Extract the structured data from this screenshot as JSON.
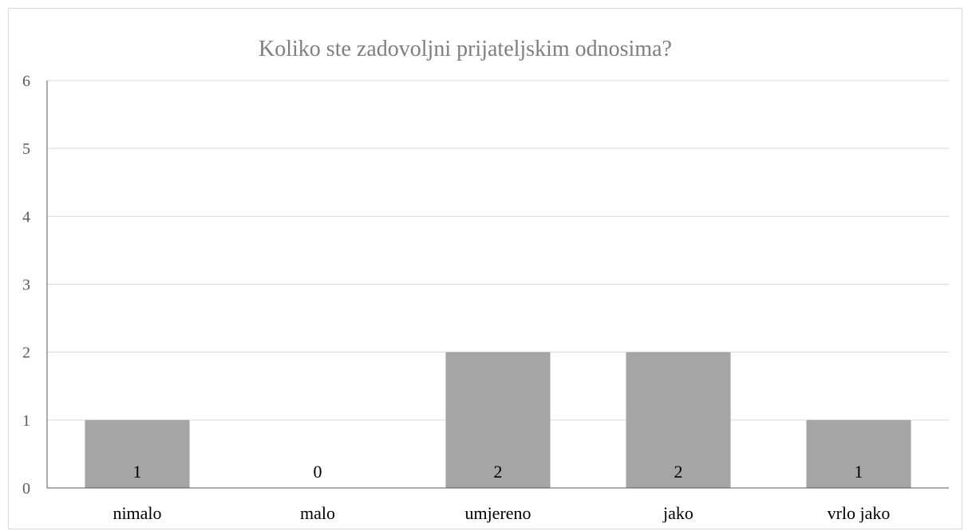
{
  "chart_data": {
    "type": "bar",
    "title": "Koliko ste zadovoljni prijateljskim odnosima?",
    "xlabel": "",
    "ylabel": "",
    "categories": [
      "nimalo",
      "malo",
      "umjereno",
      "jako",
      "vrlo jako"
    ],
    "values": [
      1,
      0,
      2,
      2,
      1
    ],
    "ylim": [
      0,
      6
    ],
    "yticks": [
      0,
      1,
      2,
      3,
      4,
      5,
      6
    ],
    "grid": true,
    "legend": "none",
    "data_labels": true,
    "colors": {
      "bar": "#a5a5a5",
      "grid": "#d9d9d9",
      "axis": "#595959",
      "title": "#7f7f7f"
    }
  }
}
